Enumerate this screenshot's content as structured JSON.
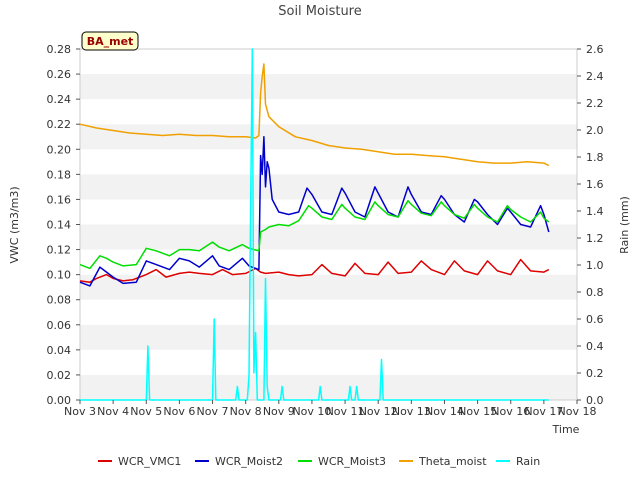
{
  "chart_data": {
    "type": "line",
    "title": "Soil Moisture",
    "xlabel": "Time",
    "ylabel": "VWC (m3/m3)",
    "ylabel_right": "Rain (mm)",
    "annotation_box": "BA_met",
    "x_ticks": [
      "Nov 3",
      "Nov 4",
      "Nov 5",
      "Nov 6",
      "Nov 7",
      "Nov 8",
      "Nov 9",
      "Nov 10",
      "Nov 11",
      "Nov 12",
      "Nov 13",
      "Nov 14",
      "Nov 15",
      "Nov 16",
      "Nov 17",
      "Nov 18"
    ],
    "x_range_days": [
      3,
      18
    ],
    "ylim_left": [
      0,
      0.28
    ],
    "y_ticks_left": [
      "0.00",
      "0.02",
      "0.04",
      "0.06",
      "0.08",
      "0.10",
      "0.12",
      "0.14",
      "0.16",
      "0.18",
      "0.20",
      "0.22",
      "0.24",
      "0.26",
      "0.28"
    ],
    "ylim_right": [
      0,
      2.6
    ],
    "y_ticks_right": [
      "0.0",
      "0.2",
      "0.4",
      "0.6",
      "0.8",
      "1.0",
      "1.2",
      "1.4",
      "1.6",
      "1.8",
      "2.0",
      "2.2",
      "2.4",
      "2.6"
    ],
    "grid": "horizontal bands",
    "legend_position": "bottom",
    "series": [
      {
        "name": "WCR_VMC1",
        "axis": "left",
        "color": "#dd0000",
        "x": [
          3.0,
          3.3,
          3.5,
          3.8,
          4.0,
          4.3,
          4.6,
          5.0,
          5.3,
          5.6,
          6.0,
          6.3,
          6.6,
          7.0,
          7.3,
          7.6,
          8.0,
          8.3,
          8.45,
          8.6,
          9.0,
          9.3,
          9.6,
          10.0,
          10.3,
          10.6,
          11.0,
          11.3,
          11.6,
          12.0,
          12.3,
          12.6,
          13.0,
          13.3,
          13.6,
          14.0,
          14.3,
          14.6,
          15.0,
          15.3,
          15.6,
          16.0,
          16.3,
          16.6,
          17.0,
          17.15
        ],
        "y": [
          0.095,
          0.094,
          0.097,
          0.1,
          0.097,
          0.095,
          0.096,
          0.1,
          0.104,
          0.098,
          0.101,
          0.102,
          0.101,
          0.1,
          0.104,
          0.1,
          0.101,
          0.105,
          0.102,
          0.101,
          0.102,
          0.1,
          0.099,
          0.1,
          0.108,
          0.101,
          0.099,
          0.109,
          0.101,
          0.1,
          0.11,
          0.101,
          0.102,
          0.111,
          0.104,
          0.1,
          0.111,
          0.103,
          0.1,
          0.111,
          0.103,
          0.1,
          0.112,
          0.103,
          0.102,
          0.104
        ]
      },
      {
        "name": "WCR_Moist2",
        "axis": "left",
        "color": "#0000cc",
        "x": [
          3.0,
          3.3,
          3.6,
          3.8,
          4.0,
          4.3,
          4.7,
          5.0,
          5.3,
          5.7,
          6.0,
          6.3,
          6.6,
          7.0,
          7.2,
          7.5,
          7.9,
          8.1,
          8.4,
          8.45,
          8.5,
          8.55,
          8.6,
          8.65,
          8.7,
          8.8,
          9.0,
          9.3,
          9.6,
          9.85,
          10.0,
          10.3,
          10.6,
          10.9,
          11.0,
          11.3,
          11.6,
          11.9,
          12.0,
          12.3,
          12.6,
          12.9,
          13.0,
          13.3,
          13.6,
          13.9,
          14.0,
          14.3,
          14.6,
          14.9,
          15.0,
          15.3,
          15.6,
          15.9,
          16.0,
          16.3,
          16.6,
          16.9,
          17.0,
          17.15
        ],
        "y": [
          0.094,
          0.091,
          0.106,
          0.102,
          0.098,
          0.093,
          0.094,
          0.111,
          0.108,
          0.104,
          0.113,
          0.111,
          0.106,
          0.115,
          0.107,
          0.104,
          0.113,
          0.107,
          0.104,
          0.195,
          0.18,
          0.21,
          0.17,
          0.19,
          0.185,
          0.16,
          0.15,
          0.148,
          0.15,
          0.169,
          0.164,
          0.15,
          0.148,
          0.169,
          0.165,
          0.15,
          0.146,
          0.17,
          0.165,
          0.15,
          0.146,
          0.17,
          0.164,
          0.15,
          0.148,
          0.163,
          0.16,
          0.148,
          0.142,
          0.16,
          0.158,
          0.148,
          0.14,
          0.153,
          0.15,
          0.14,
          0.138,
          0.155,
          0.148,
          0.134
        ]
      },
      {
        "name": "WCR_Moist3",
        "axis": "left",
        "color": "#00dd00",
        "x": [
          3.0,
          3.3,
          3.6,
          3.8,
          4.0,
          4.3,
          4.7,
          5.0,
          5.3,
          5.7,
          6.0,
          6.3,
          6.6,
          7.0,
          7.2,
          7.5,
          7.9,
          8.1,
          8.4,
          8.45,
          8.6,
          8.7,
          9.0,
          9.3,
          9.6,
          9.9,
          10.0,
          10.3,
          10.6,
          10.9,
          11.0,
          11.3,
          11.6,
          11.9,
          12.0,
          12.3,
          12.6,
          12.9,
          13.0,
          13.3,
          13.6,
          13.9,
          14.0,
          14.3,
          14.6,
          14.9,
          15.0,
          15.3,
          15.6,
          15.9,
          16.0,
          16.3,
          16.6,
          16.9,
          17.0,
          17.15
        ],
        "y": [
          0.108,
          0.105,
          0.115,
          0.113,
          0.11,
          0.107,
          0.108,
          0.121,
          0.119,
          0.115,
          0.12,
          0.12,
          0.119,
          0.126,
          0.122,
          0.119,
          0.124,
          0.121,
          0.119,
          0.134,
          0.136,
          0.138,
          0.14,
          0.139,
          0.143,
          0.155,
          0.153,
          0.146,
          0.144,
          0.156,
          0.153,
          0.146,
          0.144,
          0.158,
          0.155,
          0.148,
          0.146,
          0.159,
          0.156,
          0.149,
          0.147,
          0.158,
          0.155,
          0.148,
          0.145,
          0.156,
          0.153,
          0.146,
          0.142,
          0.155,
          0.152,
          0.146,
          0.142,
          0.15,
          0.145,
          0.142
        ]
      },
      {
        "name": "Theta_moist",
        "axis": "left",
        "color": "#f0a000",
        "x": [
          3.0,
          3.5,
          4.0,
          4.5,
          5.0,
          5.5,
          6.0,
          6.5,
          7.0,
          7.5,
          8.0,
          8.3,
          8.4,
          8.45,
          8.5,
          8.55,
          8.6,
          8.7,
          9.0,
          9.5,
          10.0,
          10.5,
          11.0,
          11.5,
          12.0,
          12.5,
          13.0,
          13.5,
          14.0,
          14.5,
          15.0,
          15.5,
          16.0,
          16.5,
          17.0,
          17.15
        ],
        "y": [
          0.22,
          0.217,
          0.215,
          0.213,
          0.212,
          0.211,
          0.212,
          0.211,
          0.211,
          0.21,
          0.21,
          0.209,
          0.211,
          0.245,
          0.258,
          0.268,
          0.236,
          0.226,
          0.218,
          0.21,
          0.207,
          0.203,
          0.201,
          0.2,
          0.198,
          0.196,
          0.196,
          0.195,
          0.194,
          0.192,
          0.19,
          0.189,
          0.189,
          0.19,
          0.189,
          0.187
        ]
      },
      {
        "name": "Rain",
        "axis": "right",
        "color": "#00ffff",
        "x": [
          3.0,
          5.0,
          5.05,
          5.1,
          5.15,
          7.0,
          7.05,
          7.1,
          7.15,
          7.7,
          7.75,
          7.8,
          8.05,
          8.1,
          8.15,
          8.2,
          8.25,
          8.3,
          8.35,
          8.4,
          8.45,
          8.5,
          8.55,
          8.6,
          8.65,
          8.7,
          8.75,
          8.8,
          8.85,
          8.9,
          9.05,
          9.1,
          9.15,
          10.2,
          10.25,
          10.3,
          11.1,
          11.15,
          11.2,
          11.3,
          11.35,
          11.4,
          12.05,
          12.1,
          12.15,
          17.15
        ],
        "y": [
          0.0,
          0.0,
          0.4,
          0.0,
          0.0,
          0.0,
          0.6,
          0.0,
          0.0,
          0.0,
          0.1,
          0.0,
          0.0,
          0.18,
          1.4,
          2.6,
          0.2,
          0.5,
          0.0,
          0.0,
          0.0,
          0.0,
          0.0,
          0.9,
          0.1,
          0.0,
          0.0,
          0.0,
          0.0,
          0.0,
          0.0,
          0.1,
          0.0,
          0.0,
          0.1,
          0.0,
          0.0,
          0.1,
          0.0,
          0.0,
          0.1,
          0.0,
          0.0,
          0.3,
          0.0,
          0.0
        ]
      }
    ]
  }
}
